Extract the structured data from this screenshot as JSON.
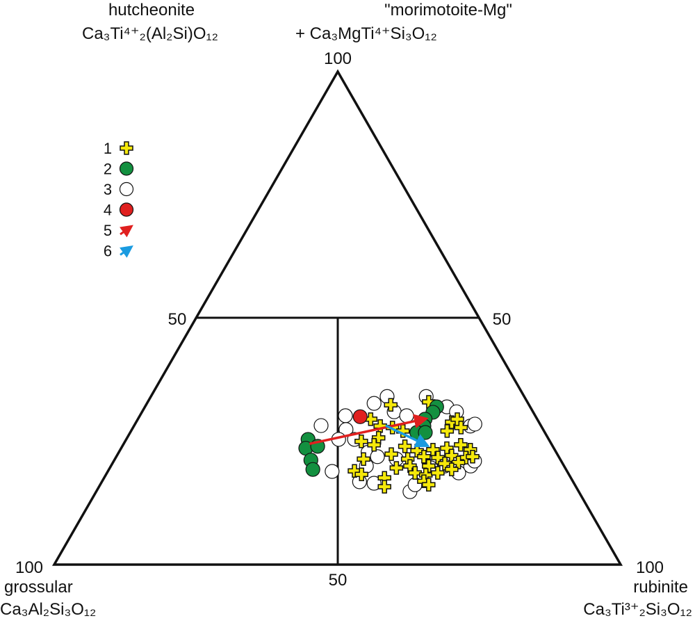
{
  "chart_data": {
    "type": "scatter",
    "subtype": "ternary",
    "apices": {
      "top": {
        "name": "hutcheonite",
        "name2": "\"morimotoite-Mg\"",
        "formula": "Ca₃Ti⁴⁺₂(Al₂Si)O₁₂",
        "plus": "+ Ca₃MgTi⁴⁺Si₃O₁₂",
        "tick": "100"
      },
      "left": {
        "name": "grossular",
        "formula": "Ca₃Al₂Si₃O₁₂",
        "tick": "100"
      },
      "right": {
        "name": "rubinite",
        "formula": "Ca₃Ti³⁺₂Si₃O₁₂",
        "tick": "100"
      }
    },
    "mid_ticks": {
      "left": "50",
      "right": "50",
      "bottom": "50"
    },
    "component_order": [
      "top",
      "right",
      "left"
    ],
    "legend": [
      {
        "label": "1",
        "symbol": "cross",
        "color": "#f5e80a"
      },
      {
        "label": "2",
        "symbol": "circle",
        "color": "#139040"
      },
      {
        "label": "3",
        "symbol": "circle-open",
        "color": "#ffffff"
      },
      {
        "label": "4",
        "symbol": "circle",
        "color": "#e0201f"
      },
      {
        "label": "5",
        "symbol": "arrow",
        "color": "#e0201f"
      },
      {
        "label": "6",
        "symbol": "arrow",
        "color": "#1a9be0"
      }
    ],
    "series": [
      {
        "name": "3",
        "points": [
          [
            28.2,
            33.0,
            38.8
          ],
          [
            18.9,
            39.6,
            41.5
          ],
          [
            30.2,
            36.3,
            33.5
          ],
          [
            27.4,
            37.8,
            34.8
          ],
          [
            25.4,
            37.5,
            37.1
          ],
          [
            25.4,
            40.3,
            34.3
          ],
          [
            32.7,
            40.1,
            27.2
          ],
          [
            34.1,
            41.7,
            24.2
          ],
          [
            31.0,
            44.5,
            24.5
          ],
          [
            30.2,
            47.1,
            22.7
          ],
          [
            34.1,
            48.6,
            17.3
          ],
          [
            32.0,
            53.3,
            14.7
          ],
          [
            31.0,
            55.5,
            13.5
          ],
          [
            28.1,
            59.4,
            12.5
          ],
          [
            28.5,
            60.0,
            11.5
          ],
          [
            22.8,
            44.0,
            33.2
          ],
          [
            21.9,
            46.1,
            32.0
          ],
          [
            21.4,
            49.7,
            28.9
          ],
          [
            20.0,
            45.1,
            34.9
          ],
          [
            16.8,
            45.5,
            37.7
          ],
          [
            16.5,
            48.2,
            35.3
          ],
          [
            14.8,
            55.4,
            29.8
          ],
          [
            20.0,
            58.9,
            21.1
          ],
          [
            18.6,
            62.1,
            19.3
          ],
          [
            20.0,
            63.5,
            16.5
          ],
          [
            21.0,
            63.7,
            15.3
          ],
          [
            16.2,
            55.6,
            28.2
          ],
          [
            19.6,
            56.7,
            23.7
          ]
        ]
      },
      {
        "name": "1",
        "points": [
          [
            32.4,
            43.2,
            24.4
          ],
          [
            29.5,
            41.1,
            29.4
          ],
          [
            28.1,
            43.5,
            28.4
          ],
          [
            27.8,
            45.8,
            26.4
          ],
          [
            27.1,
            48.0,
            24.9
          ],
          [
            25.7,
            44.4,
            29.9
          ],
          [
            25.0,
            41.7,
            33.3
          ],
          [
            24.3,
            44.3,
            31.4
          ],
          [
            33.0,
            49.6,
            17.4
          ],
          [
            28.9,
            55.7,
            15.4
          ],
          [
            29.5,
            56.4,
            14.1
          ],
          [
            27.8,
            57.9,
            14.3
          ],
          [
            27.1,
            55.8,
            17.1
          ],
          [
            24.0,
            49.9,
            26.1
          ],
          [
            23.1,
            52.5,
            24.4
          ],
          [
            23.3,
            55.2,
            21.5
          ],
          [
            23.6,
            57.5,
            18.9
          ],
          [
            24.3,
            59.6,
            16.1
          ],
          [
            23.3,
            61.8,
            14.9
          ],
          [
            22.4,
            48.3,
            29.3
          ],
          [
            21.4,
            51.7,
            26.9
          ],
          [
            21.9,
            54.3,
            23.8
          ],
          [
            21.7,
            56.9,
            21.4
          ],
          [
            22.1,
            59.1,
            18.8
          ],
          [
            21.7,
            61.8,
            16.5
          ],
          [
            21.9,
            62.9,
            15.2
          ],
          [
            21.4,
            43.9,
            34.7
          ],
          [
            19.6,
            50.6,
            29.8
          ],
          [
            20.0,
            52.8,
            27.2
          ],
          [
            20.0,
            56.1,
            23.9
          ],
          [
            20.5,
            58.7,
            20.8
          ],
          [
            20.7,
            61.0,
            18.3
          ],
          [
            19.0,
            43.5,
            37.5
          ],
          [
            18.3,
            45.1,
            36.6
          ],
          [
            18.6,
            54.4,
            27.0
          ],
          [
            18.2,
            56.5,
            25.3
          ],
          [
            18.6,
            58.4,
            23.0
          ],
          [
            19.3,
            60.5,
            20.2
          ],
          [
            17.6,
            49.5,
            32.9
          ],
          [
            16.9,
            56.8,
            26.3
          ],
          [
            16.2,
            58.0,
            25.8
          ],
          [
            15.8,
            50.4,
            33.8
          ]
        ]
      },
      {
        "name": "2",
        "points": [
          [
            25.4,
            32.1,
            42.5
          ],
          [
            23.6,
            32.6,
            43.8
          ],
          [
            24.0,
            34.5,
            41.5
          ],
          [
            21.2,
            34.7,
            44.1
          ],
          [
            19.3,
            36.0,
            44.7
          ],
          [
            32.0,
            51.5,
            16.5
          ],
          [
            30.9,
            51.4,
            17.7
          ],
          [
            29.5,
            50.7,
            19.8
          ],
          [
            28.1,
            51.2,
            20.7
          ],
          [
            26.8,
            50.6,
            22.6
          ],
          [
            26.8,
            52.1,
            21.1
          ]
        ]
      },
      {
        "name": "4",
        "points": [
          [
            30.0,
            39.0,
            31.0
          ]
        ]
      }
    ],
    "arrows": [
      {
        "name": "5",
        "from": [
          24.5,
          32.8,
          42.7
        ],
        "to": [
          29.5,
          50.5,
          20.0
        ]
      },
      {
        "name": "6",
        "from": [
          28.2,
          44.4,
          27.4
        ],
        "to": [
          24.3,
          53.4,
          22.3
        ]
      }
    ]
  }
}
